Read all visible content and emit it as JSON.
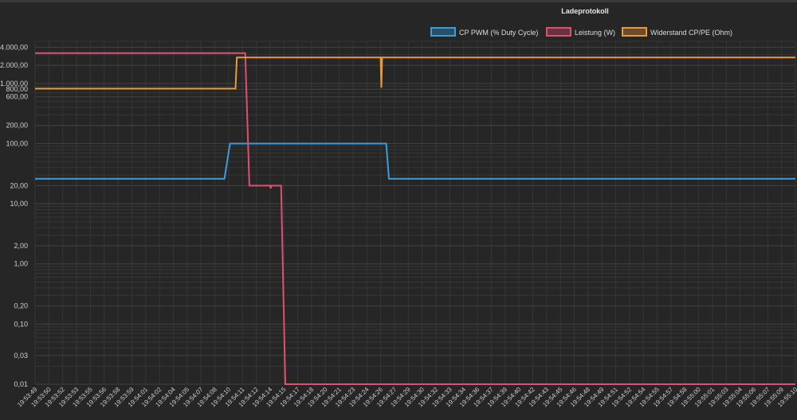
{
  "chart_data": {
    "type": "line",
    "title": "Ladeprotokoll",
    "legend_position": "top-right",
    "grid": true,
    "y_scale": "log",
    "ylim": [
      0.01,
      5000
    ],
    "y_ticks": [
      {
        "value": 0.01,
        "label": "0,01"
      },
      {
        "value": 0.03,
        "label": "0,03"
      },
      {
        "value": 0.1,
        "label": "0,10"
      },
      {
        "value": 0.2,
        "label": "0,20"
      },
      {
        "value": 1,
        "label": "1,00"
      },
      {
        "value": 2,
        "label": "2,00"
      },
      {
        "value": 10,
        "label": "10,00"
      },
      {
        "value": 20,
        "label": "20,00"
      },
      {
        "value": 100,
        "label": "100,00"
      },
      {
        "value": 200,
        "label": "200,00"
      },
      {
        "value": 600,
        "label": "600,00"
      },
      {
        "value": 800,
        "label": "800,00"
      },
      {
        "value": 1000,
        "label": "1.000,00"
      },
      {
        "value": 2000,
        "label": "2.000,00"
      },
      {
        "value": 4000,
        "label": "4.000,00"
      }
    ],
    "x_labels": [
      "19:53:49",
      "19:53:50",
      "19:53:52",
      "19:53:53",
      "19:53:55",
      "19:53:56",
      "19:53:58",
      "19:53:59",
      "19:54:01",
      "19:54:02",
      "19:54:04",
      "19:54:05",
      "19:54:07",
      "19:54:08",
      "19:54:10",
      "19:54:11",
      "19:54:12",
      "19:54:14",
      "19:54:15",
      "19:54:17",
      "19:54:18",
      "19:54:20",
      "19:54:21",
      "19:54:23",
      "19:54:24",
      "19:54:26",
      "19:54:27",
      "19:54:29",
      "19:54:30",
      "19:54:32",
      "19:54:33",
      "19:54:34",
      "19:54:36",
      "19:54:37",
      "19:54:39",
      "19:54:40",
      "19:54:42",
      "19:54:43",
      "19:54:45",
      "19:54:46",
      "19:54:48",
      "19:54:49",
      "19:54:51",
      "19:54:52",
      "19:54:54",
      "19:54:55",
      "19:54:57",
      "19:54:58",
      "19:55:00",
      "19:55:01",
      "19:55:03",
      "19:55:04",
      "19:55:06",
      "19:55:07",
      "19:55:09",
      "19:55:10"
    ],
    "series": [
      {
        "name": "CP PWM (% Duty Cycle)",
        "color": "#3d9ddc",
        "points": [
          [
            0,
            26
          ],
          [
            13.7,
            26
          ],
          [
            14.1,
            100
          ],
          [
            25.4,
            100
          ],
          [
            25.6,
            26
          ],
          [
            55,
            26
          ]
        ]
      },
      {
        "name": "Leistung (W)",
        "color": "#e0506e",
        "points": [
          [
            0,
            3200
          ],
          [
            15.2,
            3200
          ],
          [
            15.5,
            20
          ],
          [
            17.0,
            20
          ],
          [
            17.05,
            18
          ],
          [
            17.1,
            20
          ],
          [
            17.8,
            20
          ],
          [
            18.1,
            0.01
          ],
          [
            55,
            0.01
          ]
        ]
      },
      {
        "name": "Widerstand CP/PE (Ohm)",
        "color": "#e89a3c",
        "points": [
          [
            0,
            820
          ],
          [
            14.5,
            820
          ],
          [
            14.6,
            2700
          ],
          [
            25.0,
            2700
          ],
          [
            25.05,
            850
          ],
          [
            25.1,
            2700
          ],
          [
            55,
            2700
          ]
        ]
      }
    ]
  }
}
